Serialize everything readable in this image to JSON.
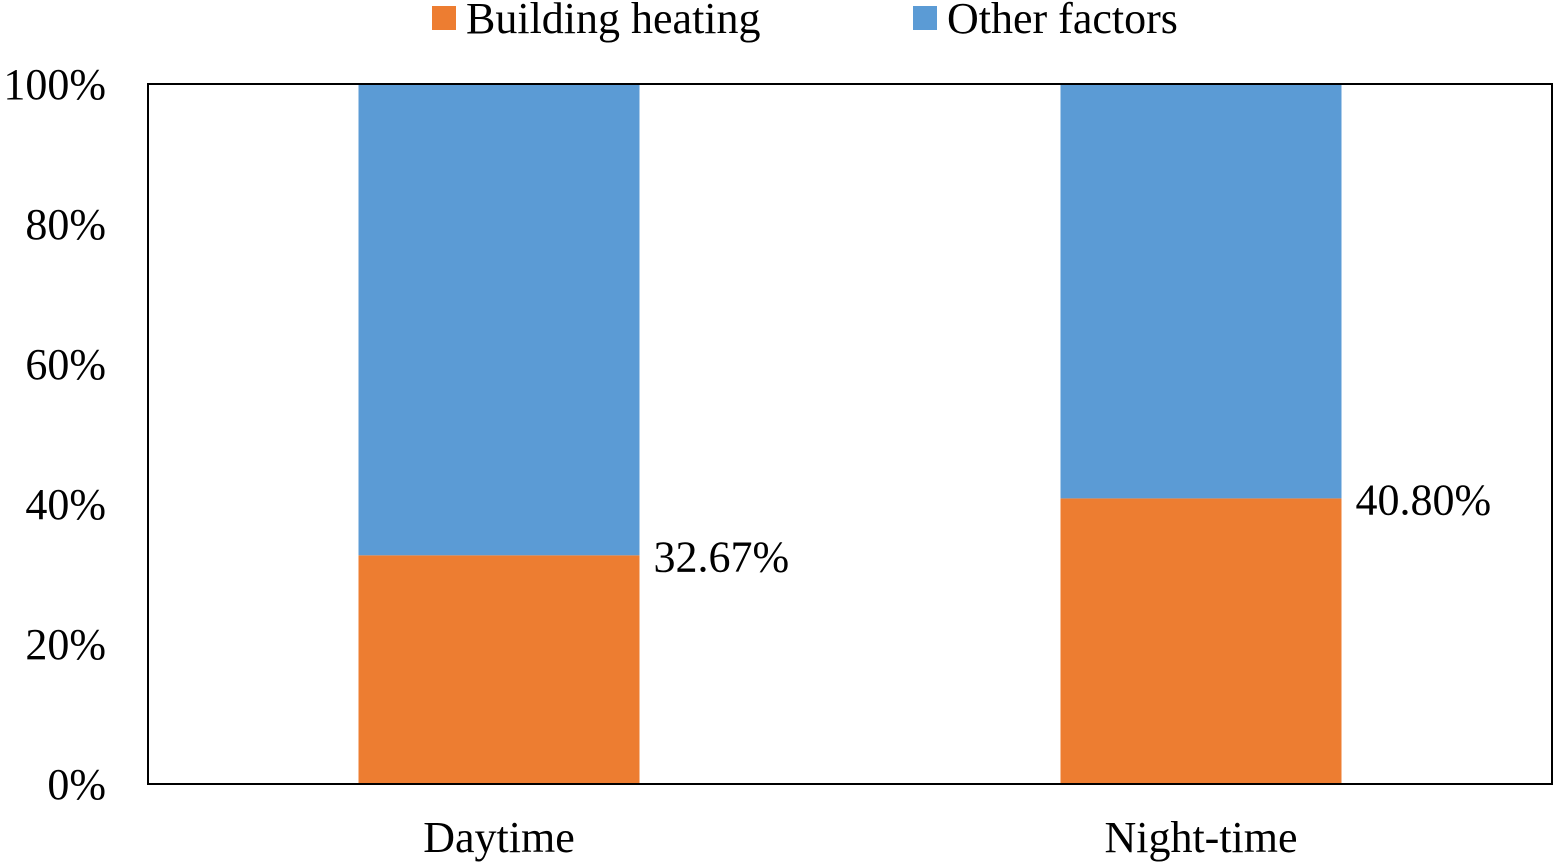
{
  "chart_data": {
    "type": "bar",
    "stacked": true,
    "normalized": true,
    "categories": [
      "Daytime",
      "Night-time"
    ],
    "series": [
      {
        "name": "Building heating",
        "values": [
          32.67,
          40.8
        ],
        "color": "#ED7D31"
      },
      {
        "name": "Other factors",
        "values": [
          67.33,
          59.2
        ],
        "color": "#5B9BD5"
      }
    ],
    "data_labels": [
      "32.67%",
      "40.80%"
    ],
    "y_ticks": [
      "0%",
      "20%",
      "40%",
      "60%",
      "80%",
      "100%"
    ],
    "ylim": [
      0,
      100
    ],
    "legend_position": "top-center",
    "grid": false
  }
}
